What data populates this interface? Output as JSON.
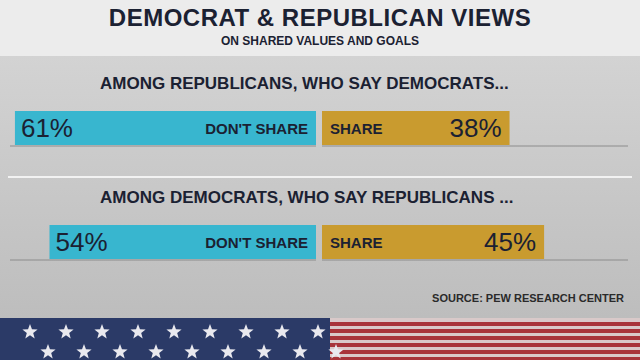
{
  "chart_data": {
    "type": "bar",
    "orientation": "horizontal",
    "title": "DEMOCRAT & REPUBLICAN VIEWS",
    "subtitle": "ON SHARED VALUES AND GOALS",
    "categories": [
      "AMONG REPUBLICANS, WHO SAY DEMOCRATS...",
      "AMONG DEMOCRATS, WHO SAY REPUBLICANS ..."
    ],
    "series": [
      {
        "name": "DON'T SHARE",
        "color": "#38b6cf",
        "values": [
          61,
          54
        ],
        "value_labels": [
          "61%",
          "54%"
        ]
      },
      {
        "name": "SHARE",
        "color": "#c99b2f",
        "values": [
          38,
          45
        ],
        "value_labels": [
          "38%",
          "45%"
        ]
      }
    ],
    "xlim": [
      0,
      62
    ],
    "tick_labels": false,
    "data_labels": true,
    "source": "SOURCE: PEW RESEARCH CENTER"
  }
}
